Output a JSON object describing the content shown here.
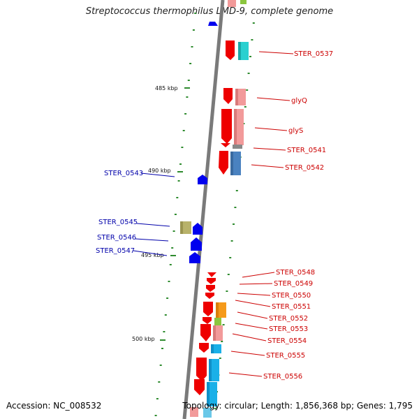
{
  "title": "Streptococcus thermophilus LMD-9, complete genome",
  "footer": {
    "accession": "Accession: NC_008532",
    "summary": "Topology: circular; Length: 1,856,368 bp; Genes: 1,795"
  },
  "colors": {
    "backbone": "#7a7a7a",
    "forward_label": "#cc0000",
    "reverse_label": "#0000aa",
    "tick": "#2e8b2e",
    "reverse_gene": "#0000ee",
    "forward_gene": "#ee0000"
  },
  "kbp_marks": [
    {
      "value": 485,
      "label": "485 kbp"
    },
    {
      "value": 490,
      "label": "490 kbp"
    },
    {
      "value": 495,
      "label": "495 kbp"
    },
    {
      "value": 500,
      "label": "500 kbp"
    }
  ],
  "forward_labels": [
    "STER_0537",
    "glyQ",
    "glyS",
    "STER_0541",
    "STER_0542",
    "STER_0548",
    "STER_0549",
    "STER_0550",
    "STER_0551",
    "STER_0552",
    "STER_0553",
    "STER_0554",
    "STER_0555",
    "STER_0556"
  ],
  "reverse_labels": [
    "STER_0543",
    "STER_0545",
    "STER_0546",
    "STER_0547"
  ]
}
